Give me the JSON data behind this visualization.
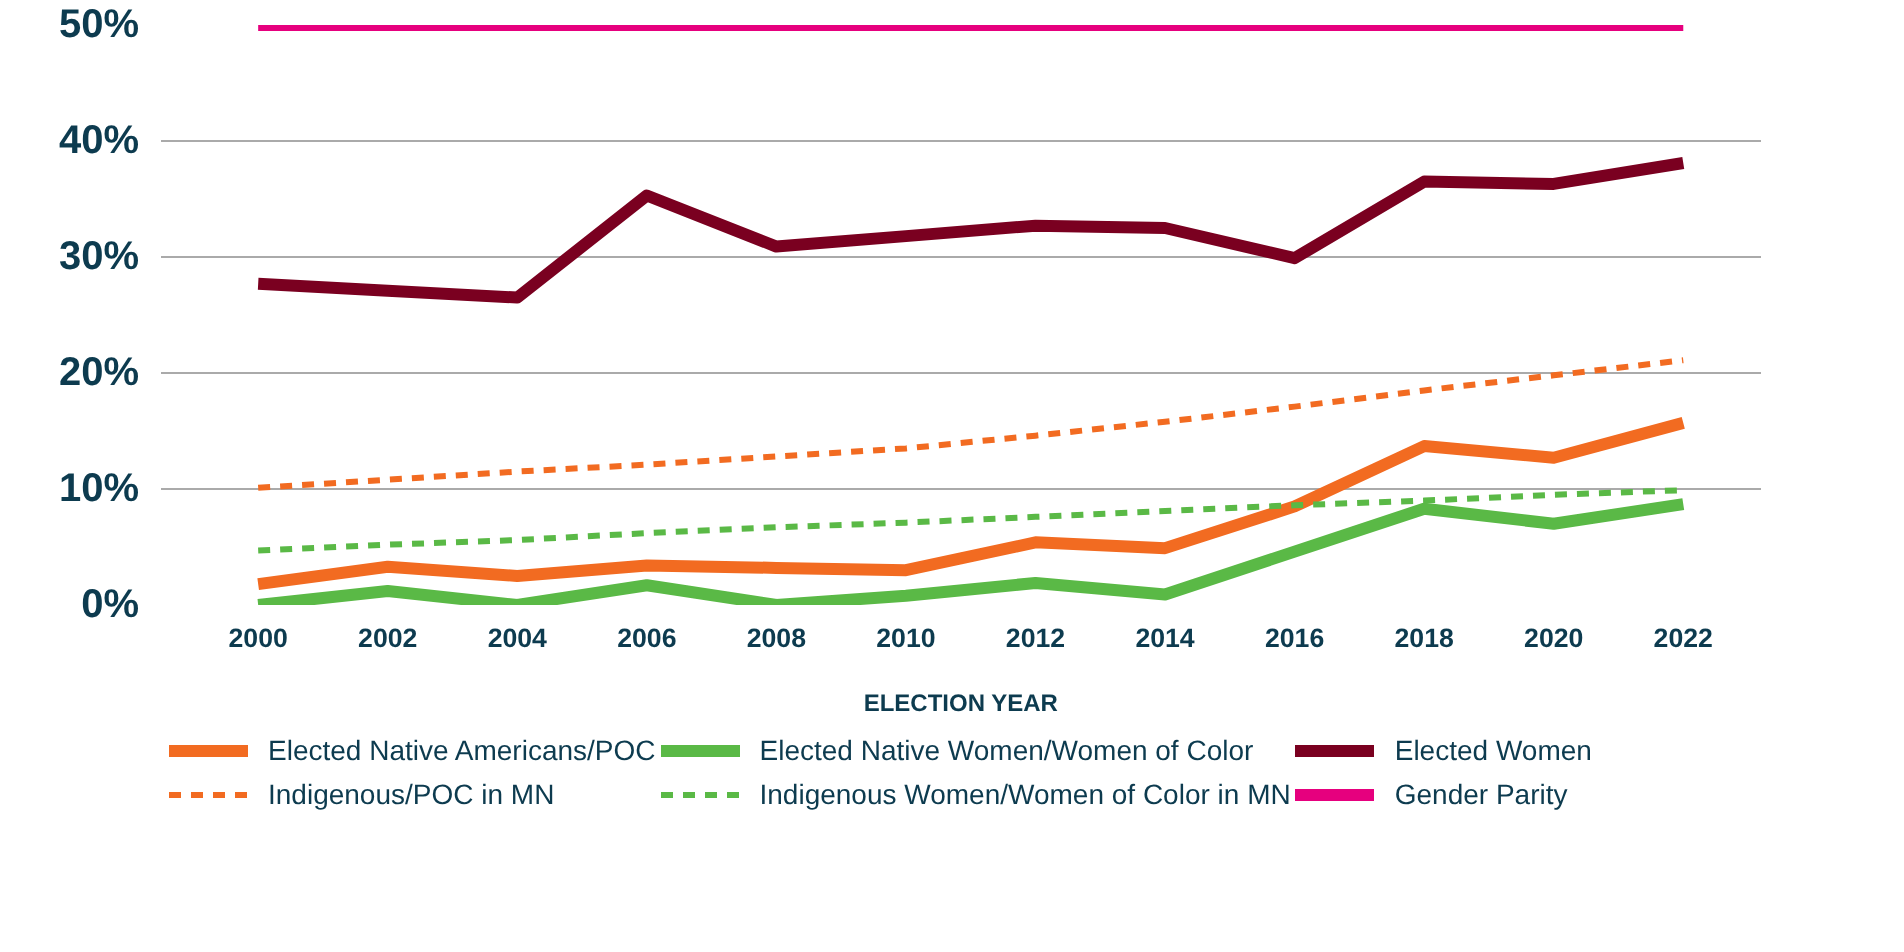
{
  "chart_data": {
    "type": "line",
    "xlabel": "ELECTION YEAR",
    "x": [
      2000,
      2002,
      2004,
      2006,
      2008,
      2010,
      2012,
      2014,
      2016,
      2018,
      2020,
      2022
    ],
    "xlim": [
      1998.5,
      2023.2
    ],
    "xticks": [
      2000,
      2002,
      2004,
      2006,
      2008,
      2010,
      2012,
      2014,
      2016,
      2018,
      2020,
      2022
    ],
    "ylim": [
      0,
      50
    ],
    "yticks": [
      {
        "value": 0,
        "label": "0%"
      },
      {
        "value": 10,
        "label": "10%"
      },
      {
        "value": 20,
        "label": "20%"
      },
      {
        "value": 30,
        "label": "30%"
      },
      {
        "value": 40,
        "label": "40%"
      },
      {
        "value": 50,
        "label": "50%"
      }
    ],
    "grid": "y",
    "legend": "bottom",
    "marker": "none",
    "series": [
      {
        "name": "Elected Native Americans/POC",
        "color": "#f26b21",
        "line_style": "solid",
        "values": [
          1.8,
          3.3,
          2.5,
          3.4,
          3.2,
          3.0,
          5.4,
          4.9,
          8.5,
          13.7,
          12.7,
          15.7
        ]
      },
      {
        "name": "Elected Native Women/Women of Color",
        "color": "#5ab946",
        "line_style": "solid",
        "values": [
          0,
          1.2,
          0,
          1.7,
          0,
          0.8,
          1.9,
          0.9,
          4.6,
          8.3,
          7.0,
          8.7
        ]
      },
      {
        "name": "Elected Women",
        "color": "#7a0020",
        "line_style": "solid",
        "values": [
          27.7,
          27.1,
          26.5,
          35.3,
          30.9,
          31.8,
          32.7,
          32.5,
          29.9,
          36.5,
          36.3,
          38.1
        ]
      },
      {
        "name": "Indigenous/POC in MN",
        "color": "#f26b21",
        "line_style": "dashed",
        "values": [
          10.1,
          10.8,
          11.5,
          12.1,
          12.8,
          13.5,
          14.6,
          15.8,
          17.1,
          18.5,
          19.8,
          21.1
        ]
      },
      {
        "name": "Indigenous Women/Women of Color in MN",
        "color": "#5ab946",
        "line_style": "dashed",
        "values": [
          4.7,
          5.2,
          5.6,
          6.2,
          6.7,
          7.1,
          7.6,
          8.1,
          8.6,
          9.0,
          9.5,
          9.9
        ]
      },
      {
        "name": "Gender Parity",
        "color": "#e6007e",
        "line_style": "solid",
        "values": [
          50,
          50,
          50,
          50,
          50,
          50,
          50,
          50,
          50,
          50,
          50,
          50
        ]
      }
    ]
  }
}
